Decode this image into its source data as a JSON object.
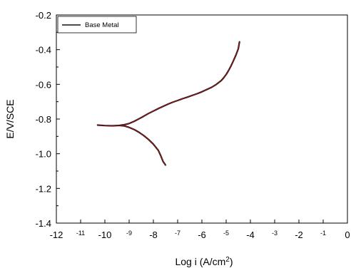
{
  "chart_data": {
    "type": "line",
    "title": "",
    "xlabel": "Log i (A/cm",
    "xlabel_sup": "2",
    "xlabel_close": ")",
    "ylabel": "E/V/SCE",
    "xlim": [
      -12,
      0
    ],
    "ylim": [
      -1.4,
      -0.2
    ],
    "x_ticks": [
      -12,
      -11,
      -10,
      -9,
      -8,
      -7,
      -6,
      -5,
      -4,
      -3,
      -2,
      -1,
      0
    ],
    "x_tick_labels": [
      "-12",
      "-11",
      "-10",
      "-9",
      "-8",
      "-7",
      "-6",
      "-5",
      "-4",
      "-3",
      "-2",
      "-1",
      "0"
    ],
    "y_ticks": [
      -0.2,
      -0.4,
      -0.6,
      -0.8,
      -1.0,
      -1.2,
      -1.4
    ],
    "y_tick_labels": [
      "-0.2",
      "-0.4",
      "-0.6",
      "-0.8",
      "-1.0",
      "-1.2",
      "-1.4"
    ],
    "grid": false,
    "legend_position": "top-left",
    "series": [
      {
        "name": "Base Metal",
        "color": "#8b1a1a",
        "segments": [
          {
            "x": [
              -10.3,
              -10.0,
              -9.7,
              -9.4,
              -9.2,
              -9.0,
              -8.8,
              -8.6,
              -8.4,
              -8.2,
              -8.0,
              -7.8,
              -7.6,
              -7.4,
              -7.2,
              -7.0,
              -6.8,
              -6.6,
              -6.4,
              -6.2,
              -6.0,
              -5.8,
              -5.6,
              -5.4,
              -5.2,
              -5.1,
              -5.0,
              -4.9,
              -4.8,
              -4.7,
              -4.6,
              -4.5,
              -4.45
            ],
            "y": [
              -0.835,
              -0.838,
              -0.839,
              -0.837,
              -0.833,
              -0.826,
              -0.814,
              -0.799,
              -0.784,
              -0.768,
              -0.754,
              -0.74,
              -0.727,
              -0.714,
              -0.703,
              -0.693,
              -0.683,
              -0.674,
              -0.664,
              -0.654,
              -0.643,
              -0.63,
              -0.617,
              -0.6,
              -0.578,
              -0.562,
              -0.543,
              -0.52,
              -0.494,
              -0.464,
              -0.432,
              -0.395,
              -0.355
            ]
          },
          {
            "x": [
              -9.4,
              -9.2,
              -9.0,
              -8.8,
              -8.6,
              -8.4,
              -8.2,
              -8.0,
              -7.8,
              -7.7,
              -7.6,
              -7.5
            ],
            "y": [
              -0.837,
              -0.84,
              -0.848,
              -0.86,
              -0.876,
              -0.895,
              -0.918,
              -0.945,
              -0.98,
              -1.01,
              -1.045,
              -1.065
            ]
          }
        ]
      }
    ]
  }
}
